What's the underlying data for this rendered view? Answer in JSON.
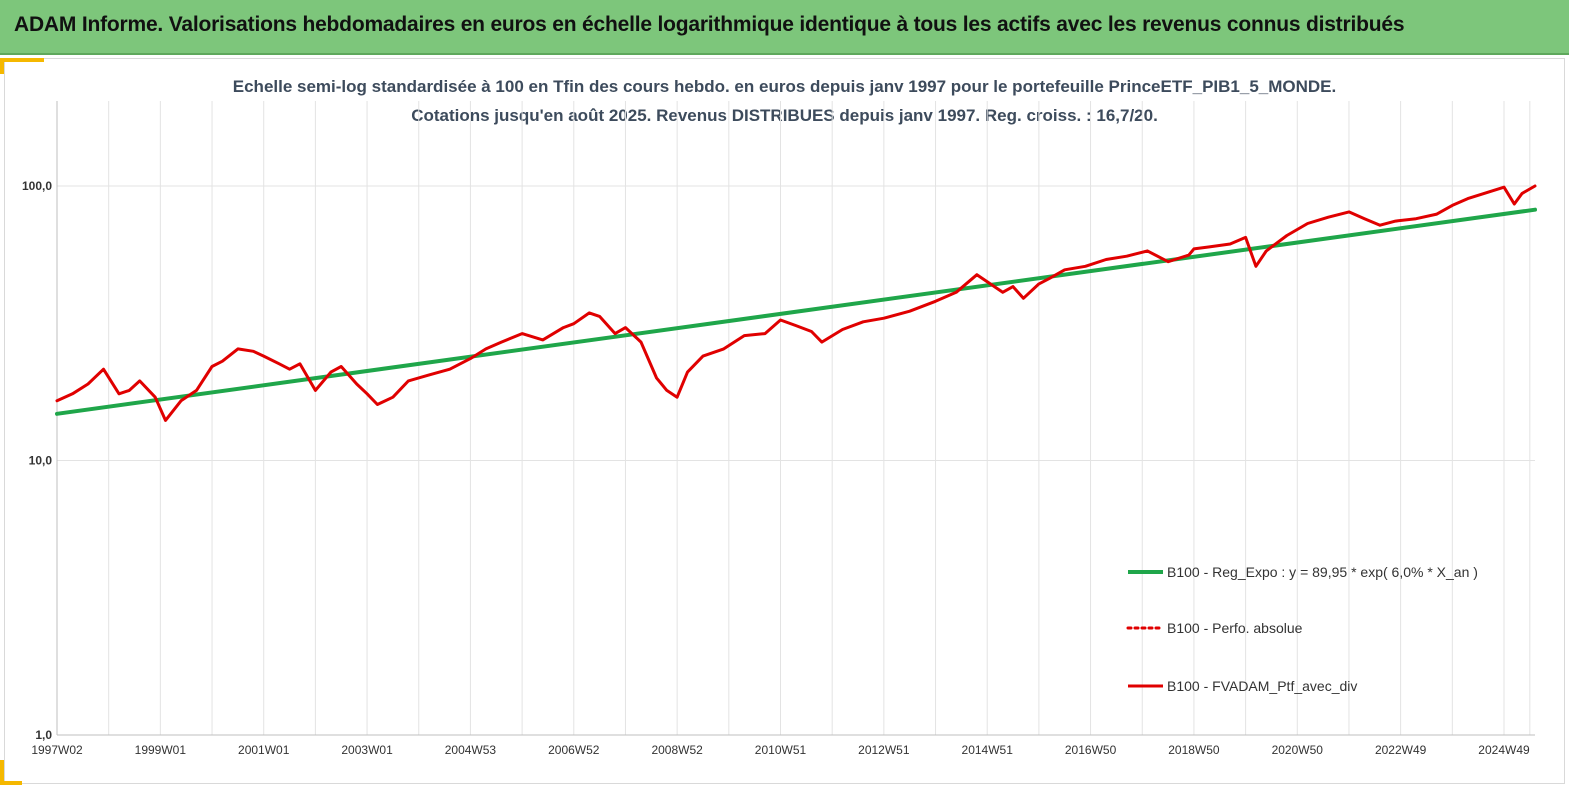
{
  "banner": {
    "title": "ADAM Informe. Valorisations hebdomadaires en euros en échelle logarithmique identique à tous les actifs avec les revenus connus distribués",
    "color": "#7dc67b"
  },
  "chart_data": {
    "type": "line",
    "title_line1": "Echelle semi-log standardisée à 100 en Tfin des cours hebdo.  en euros depuis janv 1997 pour le portefeuille PrinceETF_PIB1_5_MONDE.",
    "title_line2": "Cotations  jusqu'en août 2025. Revenus DISTRIBUES depuis janv 1997. Reg. croiss. : 16,7/20.",
    "y_scale": "log",
    "ylim": [
      1,
      100
    ],
    "y_ticks": [
      "100,0",
      "10,0",
      "1,0"
    ],
    "x_tick_labels": [
      "1997W02",
      "1999W01",
      "2001W01",
      "2003W01",
      "2004W53",
      "2006W52",
      "2008W52",
      "2010W51",
      "2012W51",
      "2014W51",
      "2016W50",
      "2018W50",
      "2020W50",
      "2022W49",
      "2024W49"
    ],
    "x_tick_years": [
      1997.0,
      1999.0,
      2001.0,
      2003.0,
      2005.0,
      2007.0,
      2009.0,
      2011.0,
      2013.0,
      2015.0,
      2017.0,
      2019.0,
      2021.0,
      2023.0,
      2025.0
    ],
    "xlim": [
      1997.0,
      2025.6
    ],
    "grid": true,
    "legend_position": "bottom-right",
    "series": [
      {
        "name": "B100 - Reg_Expo : y = 89,95 * exp( 6,0% *  X_an )",
        "color": "#1fa64a",
        "style": "solid",
        "x": [
          1997.0,
          2025.6
        ],
        "y": [
          14.8,
          82.0
        ]
      },
      {
        "name": "B100 - Perfo. absolue",
        "color": "#e00000",
        "style": "dotted",
        "x": [],
        "y": []
      },
      {
        "name": "B100 - FVADAM_Ptf_avec_div",
        "color": "#e00000",
        "style": "solid",
        "x": [
          1997.0,
          1997.3,
          1997.6,
          1997.9,
          1998.2,
          1998.4,
          1998.6,
          1998.9,
          1999.1,
          1999.4,
          1999.7,
          2000.0,
          2000.2,
          2000.5,
          2000.8,
          2001.0,
          2001.3,
          2001.5,
          2001.7,
          2002.0,
          2002.3,
          2002.5,
          2002.8,
          2003.0,
          2003.2,
          2003.5,
          2003.8,
          2004.2,
          2004.6,
          2005.0,
          2005.3,
          2005.6,
          2006.0,
          2006.4,
          2006.8,
          2007.0,
          2007.3,
          2007.5,
          2007.8,
          2008.0,
          2008.3,
          2008.6,
          2008.8,
          2009.0,
          2009.2,
          2009.5,
          2009.9,
          2010.3,
          2010.7,
          2011.0,
          2011.3,
          2011.6,
          2011.8,
          2012.2,
          2012.6,
          2013.0,
          2013.5,
          2014.0,
          2014.4,
          2014.8,
          2015.3,
          2015.5,
          2015.7,
          2016.0,
          2016.2,
          2016.5,
          2016.9,
          2017.3,
          2017.7,
          2018.1,
          2018.5,
          2018.9,
          2019.0,
          2019.3,
          2019.7,
          2020.0,
          2020.2,
          2020.4,
          2020.8,
          2021.2,
          2021.6,
          2022.0,
          2022.3,
          2022.6,
          2022.9,
          2023.3,
          2023.7,
          2024.0,
          2024.3,
          2024.7,
          2025.0,
          2025.2,
          2025.35,
          2025.6
        ],
        "y": [
          16.5,
          17.5,
          19.0,
          21.5,
          17.5,
          18.0,
          19.5,
          17.0,
          14.0,
          16.5,
          18.0,
          22.0,
          23.0,
          25.5,
          25.0,
          24.0,
          22.5,
          21.5,
          22.5,
          18.0,
          21.0,
          22.0,
          19.0,
          17.5,
          16.0,
          17.0,
          19.5,
          20.5,
          21.5,
          23.5,
          25.5,
          27.0,
          29.0,
          27.5,
          30.5,
          31.5,
          34.5,
          33.5,
          29.0,
          30.5,
          27.0,
          20.0,
          18.0,
          17.0,
          21.0,
          24.0,
          25.5,
          28.5,
          29.0,
          32.5,
          31.0,
          29.5,
          27.0,
          30.0,
          32.0,
          33.0,
          35.0,
          38.0,
          41.0,
          47.5,
          41.0,
          43.0,
          39.0,
          44.0,
          46.0,
          49.5,
          51.0,
          54.0,
          55.5,
          58.0,
          53.0,
          56.0,
          59.0,
          60.0,
          61.5,
          65.0,
          51.0,
          58.0,
          66.0,
          73.0,
          77.0,
          80.5,
          76.0,
          72.0,
          74.5,
          76.0,
          79.0,
          85.0,
          90.0,
          95.0,
          99.0,
          86.0,
          94.0,
          100.0
        ]
      }
    ]
  }
}
